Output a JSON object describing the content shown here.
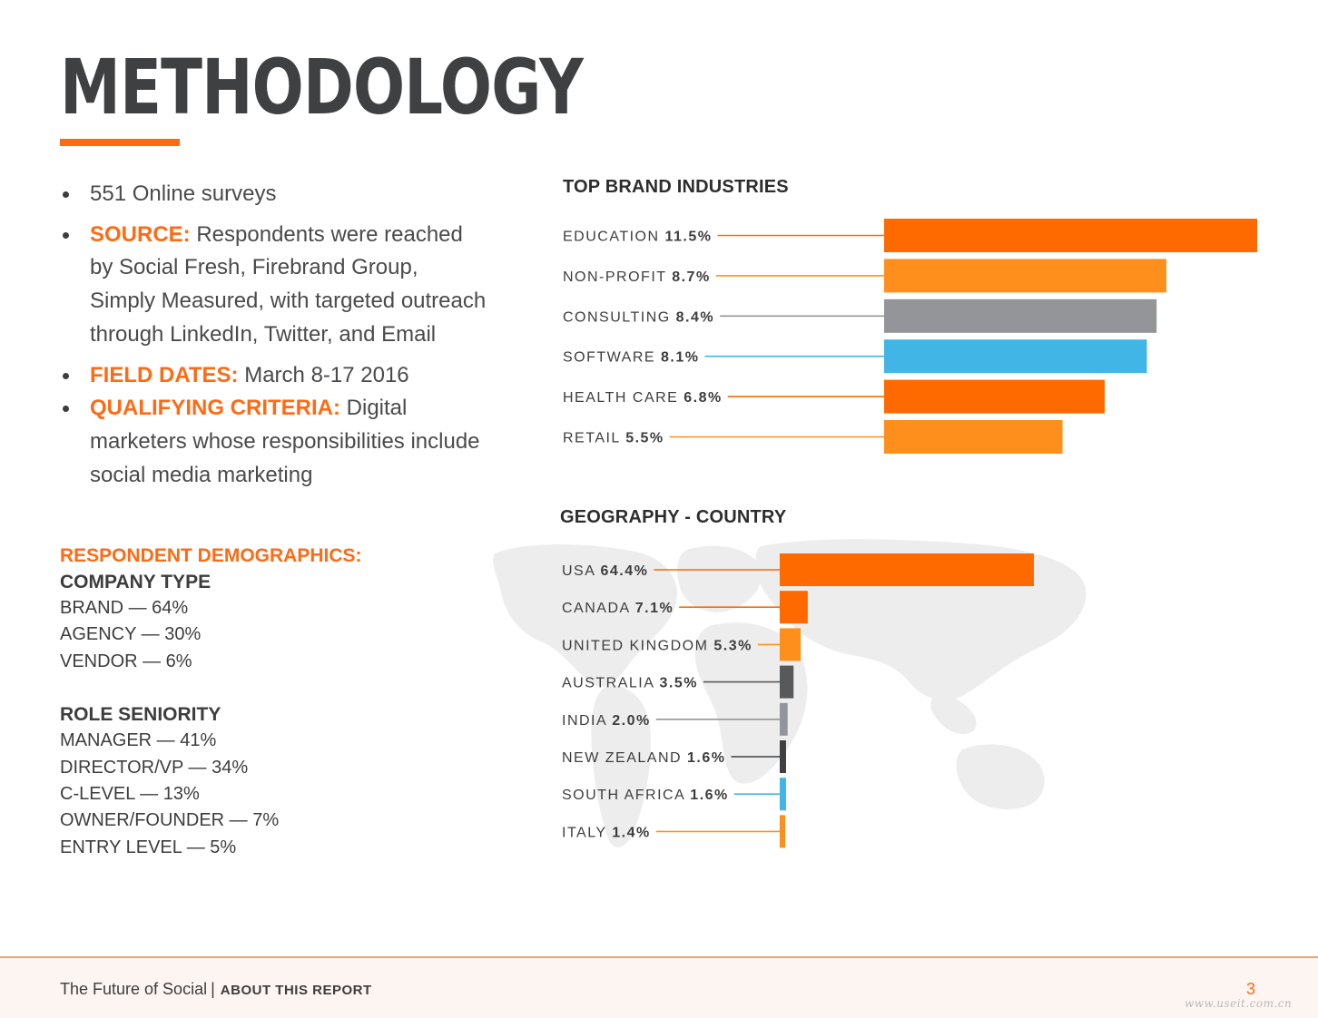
{
  "page": {
    "title": "METHODOLOGY"
  },
  "methodology": {
    "items": [
      {
        "keyword": "",
        "text": "551 Online surveys"
      },
      {
        "keyword": "SOURCE:",
        "text": " Respondents were reached by Social Fresh, Firebrand Group, Simply Measured, with targeted outreach through LinkedIn, Twitter, and Email"
      },
      {
        "keyword": "FIELD DATES:",
        "text": " March 8-17 2016"
      },
      {
        "keyword": "QUALIFYING CRITERIA:",
        "text": " Digital marketers whose responsibilities include social media marketing"
      }
    ]
  },
  "demographics": {
    "heading": "RESPONDENT DEMOGRAPHICS:",
    "company": {
      "title": "COMPANY TYPE",
      "lines": [
        "BRAND — 64%",
        "AGENCY — 30%",
        "VENDOR — 6%"
      ]
    },
    "role": {
      "title": "ROLE SENIORITY",
      "lines": [
        "MANAGER — 41%",
        "DIRECTOR/VP — 34%",
        "C-LEVEL — 13%",
        "OWNER/FOUNDER — 7%",
        "ENTRY LEVEL — 5%"
      ]
    }
  },
  "chart_data": [
    {
      "type": "bar",
      "orientation": "horizontal",
      "title": "TOP BRAND INDUSTRIES",
      "categories": [
        "EDUCATION",
        "NON-PROFIT",
        "CONSULTING",
        "SOFTWARE",
        "HEALTH CARE",
        "RETAIL"
      ],
      "values": [
        11.5,
        8.7,
        8.4,
        8.1,
        6.8,
        5.5
      ],
      "value_labels": [
        "11.5%",
        "8.7%",
        "8.4%",
        "8.1%",
        "6.8%",
        "5.5%"
      ],
      "colors": [
        "#ff6a00",
        "#ff8f1c",
        "#939598",
        "#41b6e6",
        "#ff6a00",
        "#ff8f1c"
      ],
      "grid": false,
      "legend": "none"
    },
    {
      "type": "bar",
      "orientation": "horizontal",
      "title": "GEOGRAPHY - COUNTRY",
      "categories": [
        "USA",
        "CANADA",
        "UNITED KINGDOM",
        "AUSTRALIA",
        "INDIA",
        "NEW ZEALAND",
        "SOUTH AFRICA",
        "ITALY"
      ],
      "values": [
        64.4,
        7.1,
        5.3,
        3.5,
        2.0,
        1.6,
        1.6,
        1.4
      ],
      "value_labels": [
        "64.4%",
        "7.1%",
        "5.3%",
        "3.5%",
        "2.0%",
        "1.6%",
        "1.6%",
        "1.4%"
      ],
      "colors": [
        "#ff6a00",
        "#ff6a00",
        "#ff8f1c",
        "#58595b",
        "#939598",
        "#3f4042",
        "#41b6e6",
        "#ff8f1c"
      ],
      "grid": false,
      "legend": "none"
    }
  ],
  "footer": {
    "report_name": "The Future of Social",
    "separator": "|",
    "section": "ABOUT THIS REPORT",
    "page_number": "3",
    "watermark": "www.useit.com.cn"
  }
}
